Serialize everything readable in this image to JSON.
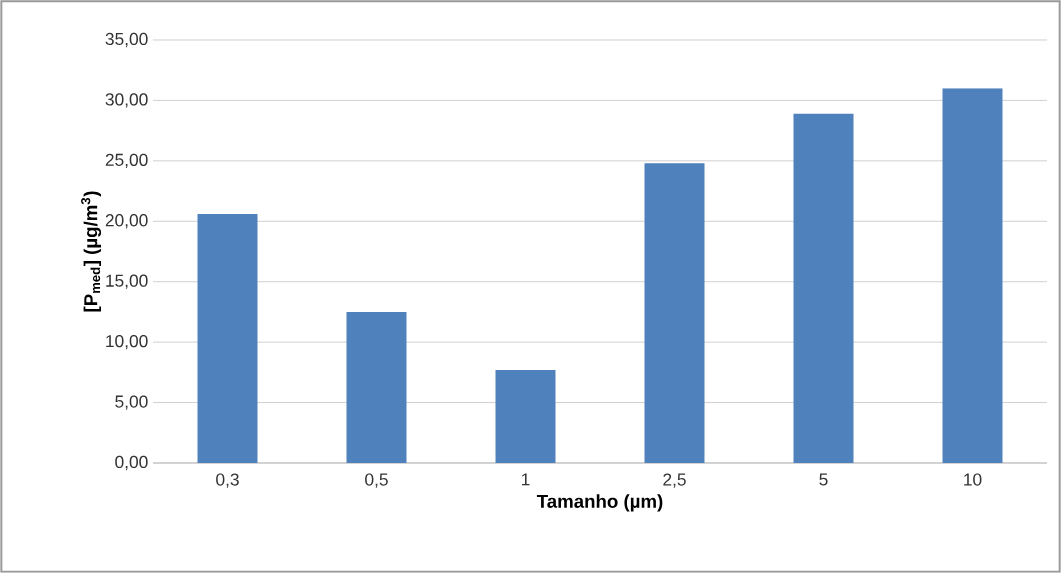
{
  "chart_data": {
    "type": "bar",
    "xlabel": "Tamanho (µm)",
    "ylabel": "[P$_{med}$] (µg/m$^{3}$)",
    "categories": [
      "0,3",
      "0,5",
      "1",
      "2,5",
      "5",
      "10"
    ],
    "values": [
      20.6,
      12.5,
      7.7,
      24.8,
      28.9,
      31.0
    ],
    "color": "#4f81bd",
    "ylim": [
      0,
      35
    ],
    "yticks": [
      {
        "value": 0,
        "label": "0,00"
      },
      {
        "value": 5,
        "label": "5,00"
      },
      {
        "value": 10,
        "label": "10,00"
      },
      {
        "value": 15,
        "label": "15,00"
      },
      {
        "value": 20,
        "label": "20,00"
      },
      {
        "value": 25,
        "label": "25,00"
      },
      {
        "value": 30,
        "label": "30,00"
      },
      {
        "value": 35,
        "label": "35,00"
      }
    ],
    "grid": "y"
  }
}
